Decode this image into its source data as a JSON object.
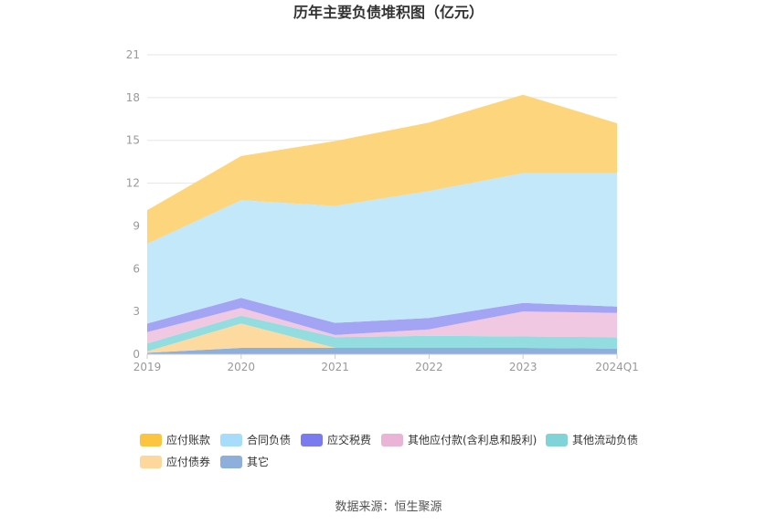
{
  "chart_data": {
    "type": "area",
    "stacked": true,
    "title": "历年主要负债堆积图（亿元）",
    "categories": [
      "2019",
      "2020",
      "2021",
      "2022",
      "2023",
      "2024Q1"
    ],
    "ylim": [
      0,
      21
    ],
    "yticks": [
      0,
      3,
      6,
      9,
      12,
      15,
      18,
      21
    ],
    "grid": true,
    "legend_position": "bottom",
    "series": [
      {
        "name": "其它",
        "color": "#8eaedb",
        "values": [
          0.1,
          0.45,
          0.45,
          0.45,
          0.45,
          0.4
        ]
      },
      {
        "name": "应付债券",
        "color": "#fddba0",
        "values": [
          0.1,
          1.7,
          0.0,
          0.0,
          0.0,
          0.0
        ]
      },
      {
        "name": "其他流动负债",
        "color": "#93dde0",
        "values": [
          0.55,
          0.55,
          0.75,
          0.85,
          0.8,
          0.8
        ]
      },
      {
        "name": "其他应付款(含利息和股利)",
        "color": "#f0c8e2",
        "values": [
          0.8,
          0.55,
          0.15,
          0.45,
          1.75,
          1.7
        ]
      },
      {
        "name": "应交税费",
        "color": "#a4a4f5",
        "values": [
          0.6,
          0.7,
          0.85,
          0.8,
          0.6,
          0.45
        ]
      },
      {
        "name": "合同负债",
        "color": "#c3e8fa",
        "values": [
          5.6,
          6.85,
          8.2,
          8.9,
          9.1,
          9.35
        ]
      },
      {
        "name": "应付账款",
        "color": "#fdd57c",
        "values": [
          2.35,
          3.1,
          4.55,
          4.8,
          5.5,
          3.5
        ]
      }
    ],
    "legend": [
      {
        "name": "应付账款",
        "color": "#fbc541"
      },
      {
        "name": "合同负债",
        "color": "#a7dcfa"
      },
      {
        "name": "应交税费",
        "color": "#7b7bf0"
      },
      {
        "name": "其他应付款(含利息和股利)",
        "color": "#e9b4d6"
      },
      {
        "name": "其他流动负债",
        "color": "#80d4d8"
      },
      {
        "name": "应付债券",
        "color": "#fdd79b"
      },
      {
        "name": "其它",
        "color": "#8eaedb"
      }
    ]
  },
  "source": "数据来源：恒生聚源"
}
